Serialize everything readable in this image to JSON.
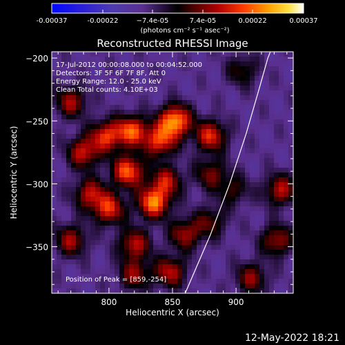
{
  "chart_data": {
    "type": "heatmap",
    "title": "Reconstructed RHESSI Image",
    "xlabel": "Heliocentric X (arcsec)",
    "ylabel": "Heliocentric Y (arcsec)",
    "xlim": [
      755,
      945
    ],
    "ylim": [
      -387,
      -195
    ],
    "x_ticks": [
      800,
      850,
      900
    ],
    "y_ticks": [
      -200,
      -250,
      -300,
      -350
    ],
    "colorbar": {
      "range": [
        -0.00037,
        0.00037
      ],
      "tick_values": [
        -0.00037,
        -0.00022,
        -7.4e-05,
        7.4e-05,
        0.00022,
        0.00037
      ],
      "tick_labels": [
        "-0.00037",
        "-0.00022",
        "−7.4e-05",
        "7.4e-05",
        "0.00022",
        "0.00037"
      ],
      "unit_text": "(photons cm⁻² s⁻¹ asec⁻²)"
    },
    "annotations": [
      "17-Jul-2012 00:00:08.000 to 00:04:52.000",
      "Detectors: 3F 5F 6F 7F 8F, Att 0",
      "Energy Range: 12.0 - 25.0 keV",
      "Clean    Total counts: 4.10E+03"
    ],
    "peak_label": "Position of Peak = [859,-254]",
    "peak": [
      859,
      -254
    ],
    "limb_curve": [
      [
        860,
        -387
      ],
      [
        880,
        -340
      ],
      [
        895,
        -300
      ],
      [
        908,
        -260
      ],
      [
        918,
        -225
      ],
      [
        925,
        -200
      ],
      [
        927,
        -195
      ]
    ],
    "blobs": [
      {
        "x": 852,
        "y": -250,
        "a": 1.0
      },
      {
        "x": 840,
        "y": -266,
        "a": 0.75
      },
      {
        "x": 818,
        "y": -258,
        "a": 0.8
      },
      {
        "x": 798,
        "y": -262,
        "a": 0.7
      },
      {
        "x": 780,
        "y": -275,
        "a": 0.65
      },
      {
        "x": 770,
        "y": -235,
        "a": 0.55
      },
      {
        "x": 815,
        "y": -290,
        "a": 0.85
      },
      {
        "x": 845,
        "y": -298,
        "a": 0.6
      },
      {
        "x": 785,
        "y": -308,
        "a": 0.6
      },
      {
        "x": 835,
        "y": -315,
        "a": 0.9
      },
      {
        "x": 800,
        "y": -320,
        "a": 0.7
      },
      {
        "x": 770,
        "y": -345,
        "a": 0.55
      },
      {
        "x": 820,
        "y": -348,
        "a": 0.6
      },
      {
        "x": 860,
        "y": -340,
        "a": 0.55
      },
      {
        "x": 848,
        "y": -370,
        "a": 0.6
      },
      {
        "x": 820,
        "y": -372,
        "a": 0.5
      },
      {
        "x": 880,
        "y": -262,
        "a": 0.7
      },
      {
        "x": 880,
        "y": -292,
        "a": 0.45
      },
      {
        "x": 935,
        "y": -305,
        "a": 0.6
      },
      {
        "x": 932,
        "y": -345,
        "a": 0.55
      },
      {
        "x": 912,
        "y": -375,
        "a": 0.5
      },
      {
        "x": 898,
        "y": -305,
        "a": 0.35
      },
      {
        "x": 880,
        "y": -330,
        "a": 0.4
      },
      {
        "x": 905,
        "y": -210,
        "a": 0.35
      }
    ]
  },
  "footer": {
    "timestamp": "12-May-2022 18:21"
  }
}
